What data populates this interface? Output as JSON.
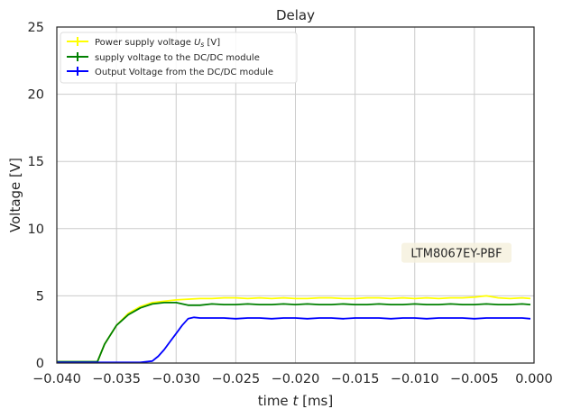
{
  "chart_data": {
    "type": "line",
    "title": "Delay",
    "xlabel_main": "time ",
    "xlabel_var": "t",
    "xlabel_unit": " [ms]",
    "ylabel": "Voltage [V]",
    "xlim": [
      -0.04,
      0.0
    ],
    "ylim": [
      0,
      25
    ],
    "xticks": [
      "-0.040",
      "-0.035",
      "-0.030",
      "-0.025",
      "-0.020",
      "-0.015",
      "-0.010",
      "-0.005",
      "0.000"
    ],
    "yticks": [
      "0",
      "5",
      "10",
      "15",
      "20",
      "25"
    ],
    "grid": true,
    "legend_position": "top-left",
    "annotation": {
      "text": "LTM8067EY-PBF",
      "x": -0.0065,
      "y": 8.2
    },
    "series": [
      {
        "name_prefix": "Power supply voltage  ",
        "name_var": "U",
        "name_sub": "s",
        "name_suffix": " [V]",
        "color": "#ffff00",
        "x": [
          -0.04,
          -0.0366,
          -0.036,
          -0.035,
          -0.034,
          -0.033,
          -0.032,
          -0.031,
          -0.03,
          -0.029,
          -0.028,
          -0.027,
          -0.026,
          -0.025,
          -0.024,
          -0.023,
          -0.022,
          -0.021,
          -0.02,
          -0.019,
          -0.018,
          -0.017,
          -0.016,
          -0.015,
          -0.014,
          -0.013,
          -0.012,
          -0.011,
          -0.01,
          -0.009,
          -0.008,
          -0.007,
          -0.006,
          -0.005,
          -0.004,
          -0.003,
          -0.002,
          -0.001,
          -0.0003
        ],
        "y": [
          0.1,
          0.1,
          1.4,
          2.8,
          3.7,
          4.2,
          4.5,
          4.6,
          4.7,
          4.75,
          4.8,
          4.8,
          4.85,
          4.85,
          4.8,
          4.85,
          4.8,
          4.85,
          4.8,
          4.8,
          4.85,
          4.85,
          4.8,
          4.8,
          4.85,
          4.85,
          4.8,
          4.85,
          4.8,
          4.85,
          4.8,
          4.85,
          4.85,
          4.9,
          5.0,
          4.85,
          4.8,
          4.85,
          4.8
        ]
      },
      {
        "name": "supply voltage to the DC/DC module",
        "color": "#008000",
        "x": [
          -0.04,
          -0.0366,
          -0.036,
          -0.035,
          -0.034,
          -0.033,
          -0.032,
          -0.031,
          -0.03,
          -0.029,
          -0.028,
          -0.027,
          -0.026,
          -0.025,
          -0.024,
          -0.023,
          -0.022,
          -0.021,
          -0.02,
          -0.019,
          -0.018,
          -0.017,
          -0.016,
          -0.015,
          -0.014,
          -0.013,
          -0.012,
          -0.011,
          -0.01,
          -0.009,
          -0.008,
          -0.007,
          -0.006,
          -0.005,
          -0.004,
          -0.003,
          -0.002,
          -0.001,
          -0.0003
        ],
        "y": [
          0.1,
          0.1,
          1.4,
          2.8,
          3.6,
          4.1,
          4.4,
          4.5,
          4.5,
          4.3,
          4.3,
          4.4,
          4.35,
          4.35,
          4.4,
          4.35,
          4.35,
          4.4,
          4.35,
          4.4,
          4.35,
          4.35,
          4.4,
          4.35,
          4.35,
          4.4,
          4.35,
          4.35,
          4.4,
          4.35,
          4.35,
          4.4,
          4.35,
          4.35,
          4.4,
          4.35,
          4.35,
          4.4,
          4.35
        ]
      },
      {
        "name": "Output Voltage from the DC/DC module",
        "color": "#0000ff",
        "x": [
          -0.04,
          -0.033,
          -0.032,
          -0.0315,
          -0.031,
          -0.0305,
          -0.03,
          -0.0295,
          -0.029,
          -0.0285,
          -0.028,
          -0.027,
          -0.026,
          -0.025,
          -0.024,
          -0.023,
          -0.022,
          -0.021,
          -0.02,
          -0.019,
          -0.018,
          -0.017,
          -0.016,
          -0.015,
          -0.014,
          -0.013,
          -0.012,
          -0.011,
          -0.01,
          -0.009,
          -0.008,
          -0.007,
          -0.006,
          -0.005,
          -0.004,
          -0.003,
          -0.002,
          -0.001,
          -0.0003
        ],
        "y": [
          0.05,
          0.05,
          0.15,
          0.5,
          1.0,
          1.6,
          2.2,
          2.8,
          3.3,
          3.4,
          3.35,
          3.35,
          3.35,
          3.3,
          3.35,
          3.35,
          3.3,
          3.35,
          3.35,
          3.3,
          3.35,
          3.35,
          3.3,
          3.35,
          3.35,
          3.35,
          3.3,
          3.35,
          3.35,
          3.3,
          3.35,
          3.35,
          3.35,
          3.3,
          3.35,
          3.35,
          3.35,
          3.35,
          3.3
        ]
      }
    ]
  }
}
